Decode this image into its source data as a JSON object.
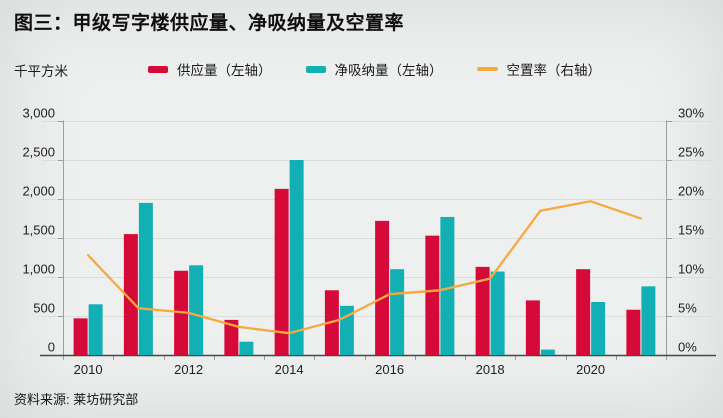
{
  "page": {
    "title": "图三：甲级写字楼供应量、净吸纳量及空置率",
    "unit_label": "千平方米",
    "source": "资料来源: 莱坊研究部"
  },
  "legend": {
    "items": [
      {
        "label": "供应量（左轴）",
        "color": "#d50a38",
        "shape": "bar"
      },
      {
        "label": "净吸纳量（左轴）",
        "color": "#12b0b4",
        "shape": "bar"
      },
      {
        "label": "空置率（右轴）",
        "color": "#f6a93e",
        "shape": "line"
      }
    ]
  },
  "chart_data": {
    "type": "bar+line",
    "title": "图三：甲级写字楼供应量、净吸纳量及空置率",
    "unit": "千平方米",
    "categories": [
      "2010",
      "2011",
      "2012",
      "2013",
      "2014",
      "2015",
      "2016",
      "2017",
      "2018",
      "2019",
      "2020",
      "2021"
    ],
    "series": [
      {
        "key": "supply",
        "name": "供应量（左轴）",
        "type": "bar",
        "axis": "left",
        "color": "#d50a38",
        "values": [
          470,
          1550,
          1080,
          450,
          2130,
          830,
          1720,
          1530,
          1130,
          700,
          1100,
          580
        ]
      },
      {
        "key": "net-absorption",
        "name": "净吸纳量（左轴）",
        "type": "bar",
        "axis": "left",
        "color": "#12b0b4",
        "values": [
          650,
          1950,
          1150,
          170,
          2500,
          630,
          1100,
          1770,
          1070,
          70,
          680,
          880
        ]
      },
      {
        "key": "vacancy-rate",
        "name": "空置率（右轴）",
        "type": "line",
        "axis": "right",
        "color": "#f6a93e",
        "values": [
          12.8,
          6.0,
          5.4,
          3.6,
          2.8,
          4.5,
          7.8,
          8.3,
          9.8,
          18.5,
          19.7,
          17.5
        ]
      }
    ],
    "left_axis": {
      "min": 0,
      "max": 3000,
      "step": 500,
      "tick_labels": [
        "0",
        "500",
        "1,000",
        "1,500",
        "2,000",
        "2,500",
        "3,000"
      ]
    },
    "right_axis": {
      "min": 0,
      "max": 30,
      "step": 5,
      "tick_labels": [
        "0%",
        "5%",
        "10%",
        "15%",
        "20%",
        "25%",
        "30%"
      ]
    },
    "x_tick_labels": [
      "2010",
      "2012",
      "2014",
      "2016",
      "2018",
      "2020"
    ],
    "x_tick_step": 2,
    "grid": true,
    "legend_position": "top"
  }
}
